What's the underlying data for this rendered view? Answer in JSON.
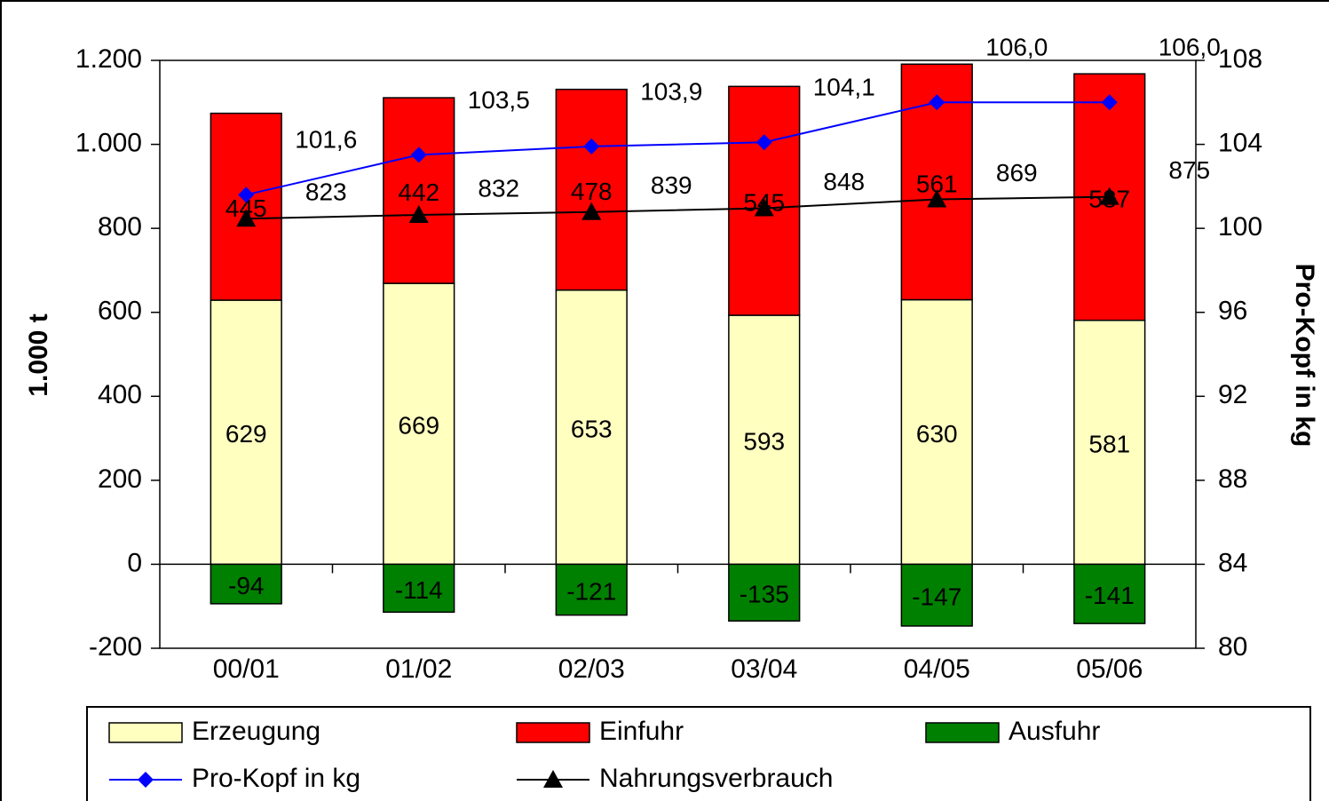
{
  "chart_data": {
    "type": "bar",
    "categories": [
      "00/01",
      "01/02",
      "02/03",
      "03/04",
      "04/05",
      "05/06"
    ],
    "series": [
      {
        "name": "Erzeugung",
        "color": "#ffffc0",
        "values": [
          629,
          669,
          653,
          593,
          630,
          581
        ]
      },
      {
        "name": "Einfuhr",
        "color": "#ff0000",
        "values": [
          445,
          442,
          478,
          545,
          561,
          587
        ]
      },
      {
        "name": "Ausfuhr",
        "color": "#008000",
        "values": [
          -94,
          -114,
          -121,
          -135,
          -147,
          -141
        ]
      },
      {
        "name": "Pro-Kopf in kg",
        "type": "line",
        "axis": "y2",
        "marker": "diamond",
        "color": "#0000ff",
        "values": [
          101.6,
          103.5,
          103.9,
          104.1,
          106.0,
          106.0
        ],
        "value_labels": [
          "101,6",
          "103,5",
          "103,9",
          "104,1",
          "106,0",
          "106,0"
        ]
      },
      {
        "name": "Nahrungsverbrauch",
        "type": "line",
        "marker": "triangle",
        "color": "#000000",
        "values": [
          823,
          832,
          839,
          848,
          869,
          875
        ]
      }
    ],
    "ylabel": "1.000 t",
    "y2label": "Pro-Kopf in kg",
    "ylim": [
      -200,
      1200
    ],
    "yticks": [
      -200,
      0,
      200,
      400,
      600,
      800,
      {
        "value": 1000,
        "label": "1.000"
      },
      {
        "value": 1200,
        "label": "1.200"
      }
    ],
    "y2lim": [
      80,
      108
    ],
    "y2ticks": [
      80,
      84,
      88,
      92,
      96,
      100,
      104,
      108
    ],
    "grid": false,
    "legend": "bottom"
  }
}
